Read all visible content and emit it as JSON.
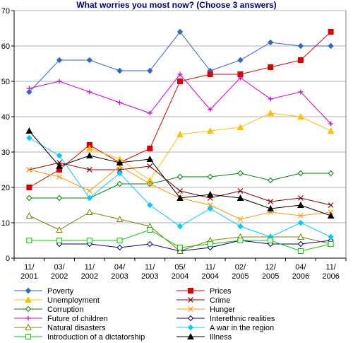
{
  "chart_data": {
    "type": "line",
    "title": "What worries you most now? (Choose 3 answers)",
    "categories": [
      "11/\n2001",
      "03/\n2002",
      "11/\n2002",
      "04/\n2003",
      "11/\n2003",
      "05/\n2004",
      "11/\n2004",
      "02/\n2005",
      "12/\n2005",
      "04/\n2006",
      "11/\n2006"
    ],
    "ylim": [
      0,
      70
    ],
    "yticks": [
      0,
      10,
      20,
      30,
      40,
      50,
      60,
      70
    ],
    "grid": "horizontal",
    "legend_position": "bottom",
    "series": [
      {
        "name": "Poverty",
        "color": "#3366cc",
        "marker": "diamond",
        "values": [
          47,
          56,
          56,
          53,
          53,
          64,
          53,
          56,
          61,
          60,
          60
        ]
      },
      {
        "name": "Prices",
        "color": "#dd0000",
        "marker": "square",
        "values": [
          20,
          25,
          32,
          27,
          31,
          50,
          52,
          52,
          54,
          56,
          64
        ]
      },
      {
        "name": "Unemployment",
        "color": "#ffc000",
        "marker": "triangle",
        "values": [
          null,
          null,
          31,
          28,
          22,
          35,
          36,
          37,
          41,
          40,
          36
        ]
      },
      {
        "name": "Crime",
        "color": "#800000",
        "marker": "x",
        "values": [
          25,
          27,
          25,
          25,
          26,
          19,
          17,
          19,
          16,
          17,
          15
        ]
      },
      {
        "name": "Corruption",
        "color": "#008000",
        "marker": "diamond-open",
        "values": [
          17,
          17,
          17,
          21,
          21,
          23,
          23,
          24,
          22,
          24,
          24
        ]
      },
      {
        "name": "Hunger",
        "color": "#ff9900",
        "marker": "x",
        "values": [
          25,
          23,
          19,
          26,
          21,
          17,
          15,
          11,
          13,
          12,
          13
        ]
      },
      {
        "name": "Future of children",
        "color": "#cc00cc",
        "marker": "plus",
        "values": [
          48,
          50,
          47,
          44,
          41,
          52,
          42,
          51,
          45,
          47,
          38
        ]
      },
      {
        "name": "Interethnic realities",
        "color": "#000080",
        "marker": "diamond-open",
        "values": [
          null,
          4,
          4,
          3,
          4,
          2,
          3,
          5,
          4,
          4,
          5
        ]
      },
      {
        "name": "Natural disasters",
        "color": "#808000",
        "marker": "triangle-open",
        "values": [
          12,
          8,
          13,
          11,
          9,
          2,
          5,
          6,
          6,
          6,
          4
        ]
      },
      {
        "name": "A war in the region",
        "color": "#00ccff",
        "marker": "diamond",
        "values": [
          34,
          29,
          17,
          24,
          15,
          9,
          14,
          9,
          6,
          10,
          6
        ]
      },
      {
        "name": "Introduction of a dictatorship",
        "color": "#00cc00",
        "marker": "square-open",
        "values": [
          5,
          5,
          5,
          5,
          8,
          3,
          4,
          5,
          5,
          2,
          4
        ]
      },
      {
        "name": "Illness",
        "color": "#000000",
        "marker": "triangle",
        "values": [
          36,
          26,
          29,
          27,
          28,
          17,
          18,
          17,
          14,
          15,
          12
        ]
      }
    ]
  }
}
